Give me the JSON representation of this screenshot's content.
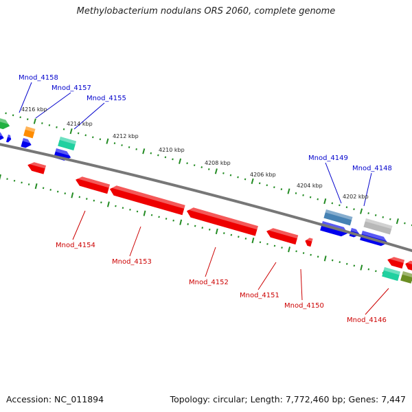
{
  "title": "Methylobacterium nodulans ORS 2060, complete genome",
  "footer": {
    "accession": "Accession: NC_011894",
    "summary": "Topology: circular; Length: 7,772,460 bp; Genes: 7,447"
  },
  "colors": {
    "backbone": "#777777",
    "tick": "#228b22",
    "label_forward": "#0000cc",
    "label_reverse": "#cc0000"
  },
  "scale_labels": [
    "4216 kbp",
    "4214 kbp",
    "4212 kbp",
    "4210 kbp",
    "4208 kbp",
    "4206 kbp",
    "4204 kbp",
    "4202 kbp"
  ],
  "forward_genes": [
    {
      "name": "Mnod_4158",
      "color": "#0000ee"
    },
    {
      "name": "Mnod_4157",
      "color": "#ff8c00"
    },
    {
      "name": "Mnod_4155",
      "color": "#20d0a0"
    },
    {
      "name": "Mnod_4149",
      "color": "#4682b4"
    },
    {
      "name": "Mnod_4148",
      "color": "#0000ee"
    }
  ],
  "reverse_genes": [
    {
      "name": "Mnod_4154",
      "color": "#ee0000"
    },
    {
      "name": "Mnod_4153",
      "color": "#ee0000"
    },
    {
      "name": "Mnod_4152",
      "color": "#ee0000"
    },
    {
      "name": "Mnod_4151",
      "color": "#ee0000"
    },
    {
      "name": "Mnod_4150",
      "color": "#ee0000"
    },
    {
      "name": "Mnod_4146",
      "color": "#20d0a0"
    }
  ]
}
